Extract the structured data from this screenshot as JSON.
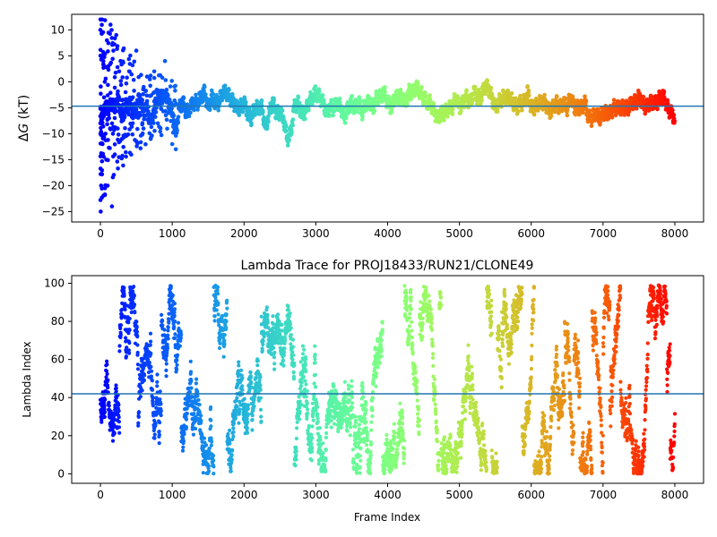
{
  "chart_data": [
    {
      "type": "scatter",
      "title": "",
      "xlabel": "",
      "ylabel_prefix": "Δ",
      "ylabel_var": "G",
      "ylabel_suffix": " (kT)",
      "xlim": [
        -400,
        8400
      ],
      "ylim": [
        -27,
        13
      ],
      "xticks": [
        0,
        1000,
        2000,
        3000,
        4000,
        5000,
        6000,
        7000,
        8000
      ],
      "yticks": [
        -25,
        -20,
        -15,
        -10,
        -5,
        0,
        5,
        10
      ],
      "hline": -4.7,
      "hline_color": "#1f77b4",
      "colormap": "rainbow",
      "x_range": [
        0,
        8000
      ],
      "trace": [
        [
          0,
          -8
        ],
        [
          50,
          -5
        ],
        [
          100,
          -6
        ],
        [
          150,
          -4
        ],
        [
          200,
          -5
        ],
        [
          250,
          -3
        ],
        [
          300,
          -7
        ],
        [
          350,
          -5
        ],
        [
          400,
          -4
        ],
        [
          450,
          -6
        ],
        [
          500,
          -5
        ],
        [
          550,
          -3
        ],
        [
          600,
          -6
        ],
        [
          650,
          -5
        ],
        [
          700,
          -8
        ],
        [
          750,
          -5
        ],
        [
          800,
          -3
        ],
        [
          850,
          -4
        ],
        [
          900,
          -2
        ],
        [
          950,
          -4
        ],
        [
          1000,
          -6
        ],
        [
          1050,
          -10
        ],
        [
          1100,
          -5
        ],
        [
          1150,
          -4
        ],
        [
          1200,
          -6
        ],
        [
          1250,
          -5
        ],
        [
          1300,
          -4
        ],
        [
          1350,
          -4
        ],
        [
          1400,
          -3
        ],
        [
          1450,
          -2
        ],
        [
          1500,
          -5
        ],
        [
          1550,
          -3
        ],
        [
          1600,
          -4
        ],
        [
          1650,
          -4
        ],
        [
          1700,
          -2
        ],
        [
          1750,
          -2
        ],
        [
          1800,
          -3
        ],
        [
          1850,
          -4
        ],
        [
          1900,
          -5
        ],
        [
          1950,
          -5
        ],
        [
          2000,
          -4
        ],
        [
          2050,
          -6
        ],
        [
          2100,
          -7
        ],
        [
          2150,
          -5
        ],
        [
          2200,
          -5
        ],
        [
          2250,
          -5
        ],
        [
          2300,
          -9
        ],
        [
          2350,
          -6
        ],
        [
          2400,
          -4
        ],
        [
          2450,
          -6
        ],
        [
          2500,
          -6
        ],
        [
          2550,
          -7
        ],
        [
          2600,
          -11
        ],
        [
          2650,
          -10
        ],
        [
          2700,
          -5
        ],
        [
          2750,
          -4
        ],
        [
          2800,
          -6
        ],
        [
          2850,
          -6
        ],
        [
          2900,
          -4
        ],
        [
          2950,
          -3
        ],
        [
          3000,
          -2
        ],
        [
          3050,
          -3
        ],
        [
          3100,
          -4
        ],
        [
          3150,
          -6
        ],
        [
          3200,
          -5
        ],
        [
          3250,
          -5
        ],
        [
          3300,
          -4
        ],
        [
          3350,
          -5
        ],
        [
          3400,
          -7
        ],
        [
          3450,
          -5
        ],
        [
          3500,
          -4
        ],
        [
          3550,
          -5
        ],
        [
          3600,
          -4
        ],
        [
          3650,
          -6
        ],
        [
          3700,
          -4
        ],
        [
          3750,
          -4
        ],
        [
          3800,
          -5
        ],
        [
          3850,
          -3
        ],
        [
          3900,
          -3
        ],
        [
          3950,
          -2
        ],
        [
          4000,
          -4
        ],
        [
          4050,
          -5
        ],
        [
          4100,
          -3
        ],
        [
          4150,
          -3
        ],
        [
          4200,
          -3
        ],
        [
          4250,
          -4
        ],
        [
          4300,
          -2
        ],
        [
          4350,
          -2
        ],
        [
          4400,
          -1
        ],
        [
          4450,
          -2
        ],
        [
          4500,
          -3
        ],
        [
          4550,
          -4
        ],
        [
          4600,
          -4
        ],
        [
          4650,
          -6
        ],
        [
          4700,
          -7
        ],
        [
          4750,
          -6
        ],
        [
          4800,
          -6
        ],
        [
          4850,
          -5
        ],
        [
          4900,
          -5
        ],
        [
          4950,
          -3
        ],
        [
          5000,
          -5
        ],
        [
          5050,
          -4
        ],
        [
          5100,
          -3
        ],
        [
          5150,
          -4
        ],
        [
          5200,
          -2
        ],
        [
          5250,
          -3
        ],
        [
          5300,
          -3
        ],
        [
          5350,
          -1
        ],
        [
          5400,
          -1
        ],
        [
          5450,
          -3
        ],
        [
          5500,
          -5
        ],
        [
          5550,
          -4
        ],
        [
          5600,
          -3
        ],
        [
          5650,
          -3
        ],
        [
          5700,
          -3
        ],
        [
          5750,
          -4
        ],
        [
          5800,
          -5
        ],
        [
          5850,
          -4
        ],
        [
          5900,
          -4
        ],
        [
          5950,
          -2
        ],
        [
          6000,
          -5
        ],
        [
          6050,
          -5
        ],
        [
          6100,
          -4
        ],
        [
          6150,
          -4
        ],
        [
          6200,
          -4
        ],
        [
          6250,
          -6
        ],
        [
          6300,
          -5
        ],
        [
          6350,
          -4
        ],
        [
          6400,
          -5
        ],
        [
          6450,
          -4
        ],
        [
          6500,
          -5
        ],
        [
          6550,
          -3
        ],
        [
          6600,
          -5
        ],
        [
          6650,
          -5
        ],
        [
          6700,
          -5
        ],
        [
          6750,
          -4
        ],
        [
          6800,
          -7
        ],
        [
          6850,
          -7
        ],
        [
          6900,
          -6
        ],
        [
          6950,
          -7
        ],
        [
          7000,
          -6
        ],
        [
          7050,
          -6
        ],
        [
          7100,
          -6
        ],
        [
          7150,
          -5
        ],
        [
          7200,
          -5
        ],
        [
          7250,
          -5
        ],
        [
          7300,
          -5
        ],
        [
          7350,
          -5
        ],
        [
          7400,
          -4
        ],
        [
          7450,
          -4
        ],
        [
          7500,
          -3
        ],
        [
          7550,
          -4
        ],
        [
          7600,
          -5
        ],
        [
          7650,
          -4
        ],
        [
          7700,
          -4
        ],
        [
          7750,
          -4
        ],
        [
          7800,
          -3
        ],
        [
          7850,
          -3
        ],
        [
          7900,
          -5
        ],
        [
          7950,
          -6
        ],
        [
          8000,
          -7
        ]
      ],
      "early_spread": [
        [
          0,
          10
        ],
        [
          5,
          -25
        ],
        [
          10,
          -20
        ],
        [
          20,
          5
        ],
        [
          30,
          -12
        ],
        [
          40,
          4
        ],
        [
          50,
          -3
        ],
        [
          60,
          0
        ],
        [
          70,
          -10
        ],
        [
          80,
          -15
        ],
        [
          90,
          8
        ],
        [
          100,
          -20
        ],
        [
          110,
          3
        ],
        [
          120,
          -7
        ],
        [
          140,
          11
        ],
        [
          160,
          -24
        ],
        [
          180,
          6
        ],
        [
          200,
          -14
        ],
        [
          220,
          9
        ],
        [
          240,
          -9
        ],
        [
          260,
          2
        ],
        [
          280,
          4
        ],
        [
          300,
          -11
        ],
        [
          350,
          -2
        ],
        [
          400,
          2
        ],
        [
          450,
          -8
        ],
        [
          500,
          6
        ],
        [
          550,
          -6
        ],
        [
          600,
          -9
        ],
        [
          650,
          1
        ],
        [
          700,
          -11
        ],
        [
          750,
          2
        ],
        [
          800,
          -8
        ],
        [
          850,
          -3
        ],
        [
          900,
          4
        ],
        [
          950,
          -6
        ],
        [
          1000,
          -12
        ],
        [
          1050,
          -13
        ]
      ]
    },
    {
      "type": "scatter",
      "title": "Lambda Trace for PROJ18433/RUN21/CLONE49",
      "xlabel": "Frame Index",
      "ylabel": "Lambda Index",
      "xlim": [
        -400,
        8400
      ],
      "ylim": [
        -5,
        104
      ],
      "xticks": [
        0,
        1000,
        2000,
        3000,
        4000,
        5000,
        6000,
        7000,
        8000
      ],
      "yticks": [
        0,
        20,
        40,
        60,
        80,
        100
      ],
      "hline": 42,
      "hline_color": "#1f77b4",
      "colormap": "rainbow",
      "x_range": [
        0,
        8000
      ],
      "y_range": [
        0,
        100
      ]
    }
  ]
}
